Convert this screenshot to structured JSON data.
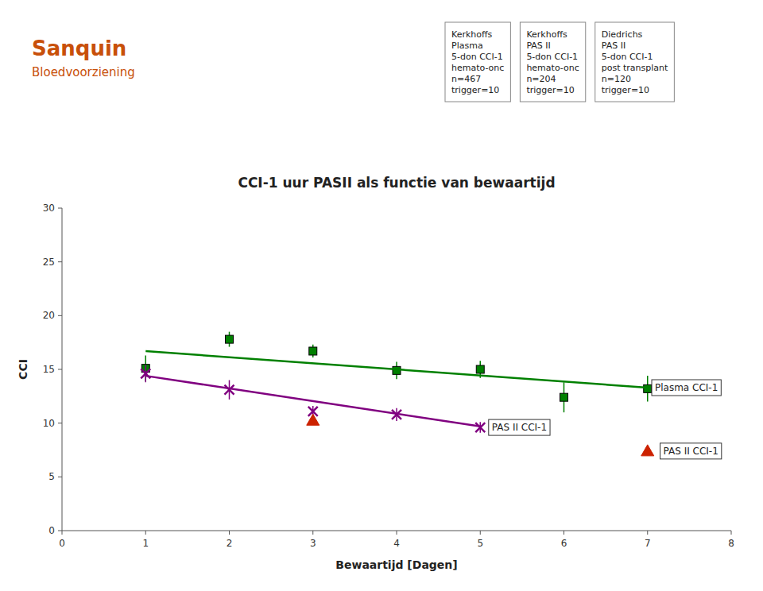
{
  "chart_data": {
    "type": "scatter",
    "title": "CCI-1 uur PASII als functie van bewaartijd",
    "x_label": "Bewaartijd [Dagen]",
    "y_label": "CCI",
    "xlim": [
      0,
      8
    ],
    "ylim": [
      0,
      30
    ],
    "xticks": [
      0,
      1,
      2,
      3,
      4,
      5,
      6,
      7,
      8
    ],
    "yticks": [
      0,
      5,
      10,
      15,
      20,
      25,
      30
    ],
    "grid": false,
    "series": [
      {
        "type": "scatter",
        "marker": "square",
        "color": "#008000",
        "x": [
          1,
          2,
          3,
          4,
          5,
          6,
          7
        ],
        "values": [
          15.1,
          17.8,
          16.7,
          14.9,
          15.0,
          12.4,
          13.2
        ],
        "errors": [
          1.2,
          0.7,
          0.6,
          0.8,
          0.8,
          1.4,
          1.2
        ]
      },
      {
        "type": "line",
        "line_style": "solid",
        "color": "#008000",
        "x": [
          1,
          7
        ],
        "values": [
          16.7,
          13.3
        ]
      },
      {
        "type": "scatter",
        "marker": "x",
        "color": "#800080",
        "x": [
          1,
          2,
          3,
          4,
          5
        ],
        "values": [
          14.6,
          13.1,
          11.1,
          10.8,
          9.6
        ],
        "errors": [
          0.8,
          0.9,
          0.5,
          0.6,
          0.5
        ]
      },
      {
        "type": "line",
        "line_style": "solid",
        "color": "#800080",
        "x": [
          1,
          5
        ],
        "values": [
          14.4,
          9.7
        ]
      },
      {
        "type": "scatter",
        "marker": "triangle",
        "color": "#CC2200",
        "x": [
          3,
          7
        ],
        "values": [
          10.25,
          7.4
        ],
        "errors": [
          0.3,
          0.4
        ]
      }
    ],
    "annotations": [
      {
        "text": "Plasma CCI-1",
        "x": 7.05,
        "y": 13.3
      },
      {
        "text": "PAS II CCI-1",
        "x": 5.1,
        "y": 9.6
      },
      {
        "text": "PAS II CCI-1",
        "x": 7.15,
        "y": 7.4
      }
    ],
    "text_boxes": [
      {
        "lines": [
          "Kerkhoffs",
          "Plasma",
          "5-don CCI-1",
          "hemato-onc",
          "n=467",
          "trigger=10"
        ]
      },
      {
        "lines": [
          "Kerkhoffs",
          "PAS II",
          "5-don CCI-1",
          "hemato-onc",
          "n=204",
          "trigger=10"
        ]
      },
      {
        "lines": [
          "Diedrichs",
          "PAS II",
          "5-don CCI-1",
          "post transplant",
          "n=120",
          "trigger=10"
        ]
      }
    ],
    "brand": {
      "text": "Sanquin",
      "subtitle": "Bloedvoorziening",
      "color": "#c8500a"
    }
  }
}
